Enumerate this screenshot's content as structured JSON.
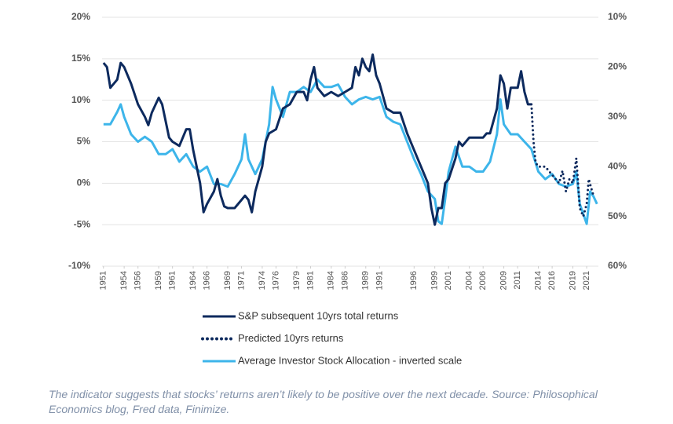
{
  "chart_data": {
    "type": "line",
    "xlim": [
      1950.8,
      2022.7
    ],
    "xticks": [
      1951,
      1954,
      1956,
      1959,
      1961,
      1964,
      1966,
      1969,
      1971,
      1974,
      1976,
      1979,
      1981,
      1984,
      1986,
      1989,
      1991,
      1996,
      1999,
      2001,
      2004,
      2006,
      2009,
      2011,
      2014,
      2016,
      2019,
      2021
    ],
    "ylim": [
      -10,
      20
    ],
    "yticks": [
      {
        "value": -10,
        "label": "-10%"
      },
      {
        "value": -5,
        "label": "-5%"
      },
      {
        "value": 0,
        "label": "0%"
      },
      {
        "value": 5,
        "label": "5%"
      },
      {
        "value": 10,
        "label": "10%"
      },
      {
        "value": 15,
        "label": "15%"
      },
      {
        "value": 20,
        "label": "20%"
      }
    ],
    "y2lim": [
      60,
      10
    ],
    "y2ticks": [
      {
        "value": 60,
        "label": "60%"
      },
      {
        "value": 50,
        "label": "50%"
      },
      {
        "value": 40,
        "label": "40%"
      },
      {
        "value": 30,
        "label": "30%"
      },
      {
        "value": 20,
        "label": "20%"
      },
      {
        "value": 10,
        "label": "10%"
      }
    ],
    "grid": true,
    "series": [
      {
        "name": "Average Investor Stock Allocation - inverted scale",
        "color": "#3db5ea",
        "axis": "y2",
        "line_style": "solid",
        "x": [
          1951,
          1952,
          1953,
          1953.5,
          1954,
          1955,
          1956,
          1957,
          1958,
          1959,
          1960,
          1961,
          1962,
          1963,
          1964,
          1965,
          1966,
          1967,
          1968,
          1969,
          1970,
          1971,
          1971.5,
          1972,
          1973,
          1974,
          1975,
          1975.5,
          1976,
          1977,
          1978,
          1979,
          1980,
          1981,
          1982,
          1983,
          1984,
          1985,
          1986,
          1987,
          1988,
          1989,
          1990,
          1991,
          1992,
          1993,
          1994,
          1995,
          1996,
          1997,
          1998,
          1999,
          1999.5,
          2000,
          2000.5,
          2001,
          2002,
          2003,
          2004,
          2005,
          2006,
          2007,
          2008,
          2008.5,
          2009,
          2010,
          2011,
          2012,
          2013,
          2014,
          2015,
          2016,
          2017,
          2018,
          2019,
          2019.5,
          2020,
          2021,
          2021.5,
          2022,
          2022.5
        ],
        "values": [
          31.5,
          31.5,
          29,
          27.5,
          30,
          33.5,
          35,
          34,
          35,
          37.5,
          37.5,
          36.5,
          39,
          37.5,
          40,
          41,
          40,
          43.5,
          43.5,
          44,
          41.5,
          38.5,
          33.5,
          38.5,
          41.5,
          38.5,
          31.5,
          24,
          26.5,
          30,
          25,
          25,
          24,
          25,
          22.5,
          24,
          24,
          23.5,
          26,
          27.5,
          26.5,
          26,
          26.5,
          26,
          30,
          31,
          31.5,
          35,
          38.5,
          41.5,
          45,
          46.5,
          51,
          51.5,
          46.5,
          41,
          36,
          40,
          40,
          41,
          41,
          39,
          33.5,
          26.5,
          31.5,
          33.5,
          33.5,
          35,
          36.5,
          41,
          42.5,
          41.5,
          43.5,
          44,
          43.5,
          41,
          47.5,
          51.5,
          45,
          46,
          47.5
        ]
      },
      {
        "name": "S&P subsequent 10yrs total returns",
        "color": "#0d2a5e",
        "line_style": "solid",
        "x": [
          1951,
          1951.5,
          1952,
          1953,
          1953.5,
          1954,
          1955,
          1956,
          1957,
          1957.5,
          1958,
          1959,
          1959.5,
          1960,
          1960.5,
          1961,
          1962,
          1963,
          1963.5,
          1964,
          1965,
          1965.5,
          1966,
          1967,
          1967.5,
          1968,
          1968.5,
          1969,
          1970,
          1971,
          1971.5,
          1972,
          1972.5,
          1973,
          1974,
          1974.5,
          1975,
          1976,
          1977,
          1978,
          1979,
          1980,
          1980.5,
          1981,
          1981.5,
          1982,
          1983,
          1984,
          1985,
          1986,
          1987,
          1987.5,
          1988,
          1988.5,
          1989,
          1989.5,
          1990,
          1990.5,
          1991,
          1992,
          1993,
          1994,
          1995,
          1996,
          1997,
          1998,
          1998.5,
          1999,
          1999.5,
          2000,
          2000.5,
          2001,
          2002,
          2002.5,
          2003,
          2004,
          2005,
          2006,
          2006.5,
          2007,
          2008,
          2008.5,
          2009,
          2009.5,
          2010,
          2011,
          2011.5,
          2012,
          2012.5,
          2013
        ],
        "values": [
          14.5,
          14,
          11.5,
          12.5,
          14.5,
          14,
          12,
          9.5,
          8,
          7,
          8.5,
          10.3,
          9.5,
          7.5,
          5.5,
          5,
          4.5,
          6.5,
          6.5,
          4,
          0,
          -3.5,
          -2.5,
          -1,
          0.5,
          -1.5,
          -2.8,
          -3,
          -3,
          -2,
          -1.5,
          -2,
          -3.5,
          -1,
          2,
          5,
          6,
          6.5,
          9,
          9.5,
          11,
          11,
          10,
          12.5,
          14,
          11.5,
          10.5,
          11,
          10.5,
          11,
          11.5,
          14,
          13,
          15,
          14,
          13.5,
          15.5,
          13,
          12,
          9,
          8.5,
          8.5,
          6,
          4,
          2,
          0,
          -3,
          -5,
          -3,
          -3,
          0,
          0.5,
          3,
          5,
          4.5,
          5.5,
          5.5,
          5.5,
          6,
          6,
          9,
          13,
          12,
          9,
          11.5,
          11.5,
          13.5,
          11,
          9.5,
          9.5
        ]
      },
      {
        "name": "Predicted 10yrs returns",
        "color": "#0d2a5e",
        "line_style": "dotted",
        "x": [
          2013,
          2013.3,
          2013.6,
          2014,
          2015,
          2016,
          2016.5,
          2017,
          2017.5,
          2018,
          2018.5,
          2019,
          2019.5,
          2020,
          2020.5,
          2021,
          2021.3,
          2021.8,
          2022
        ],
        "values": [
          9.5,
          5,
          2.5,
          2,
          2,
          1,
          0.5,
          0,
          1.5,
          -1,
          0.5,
          0,
          3,
          -3,
          -4,
          -2.5,
          0.5,
          -1,
          -1.5
        ]
      }
    ],
    "legend_order": [
      1,
      2,
      0
    ],
    "caption": "The indicator suggests that stocks’ returns aren’t likely to be positive over the next decade. Source: Philosophical Economics blog, Fred data, Finimize."
  }
}
